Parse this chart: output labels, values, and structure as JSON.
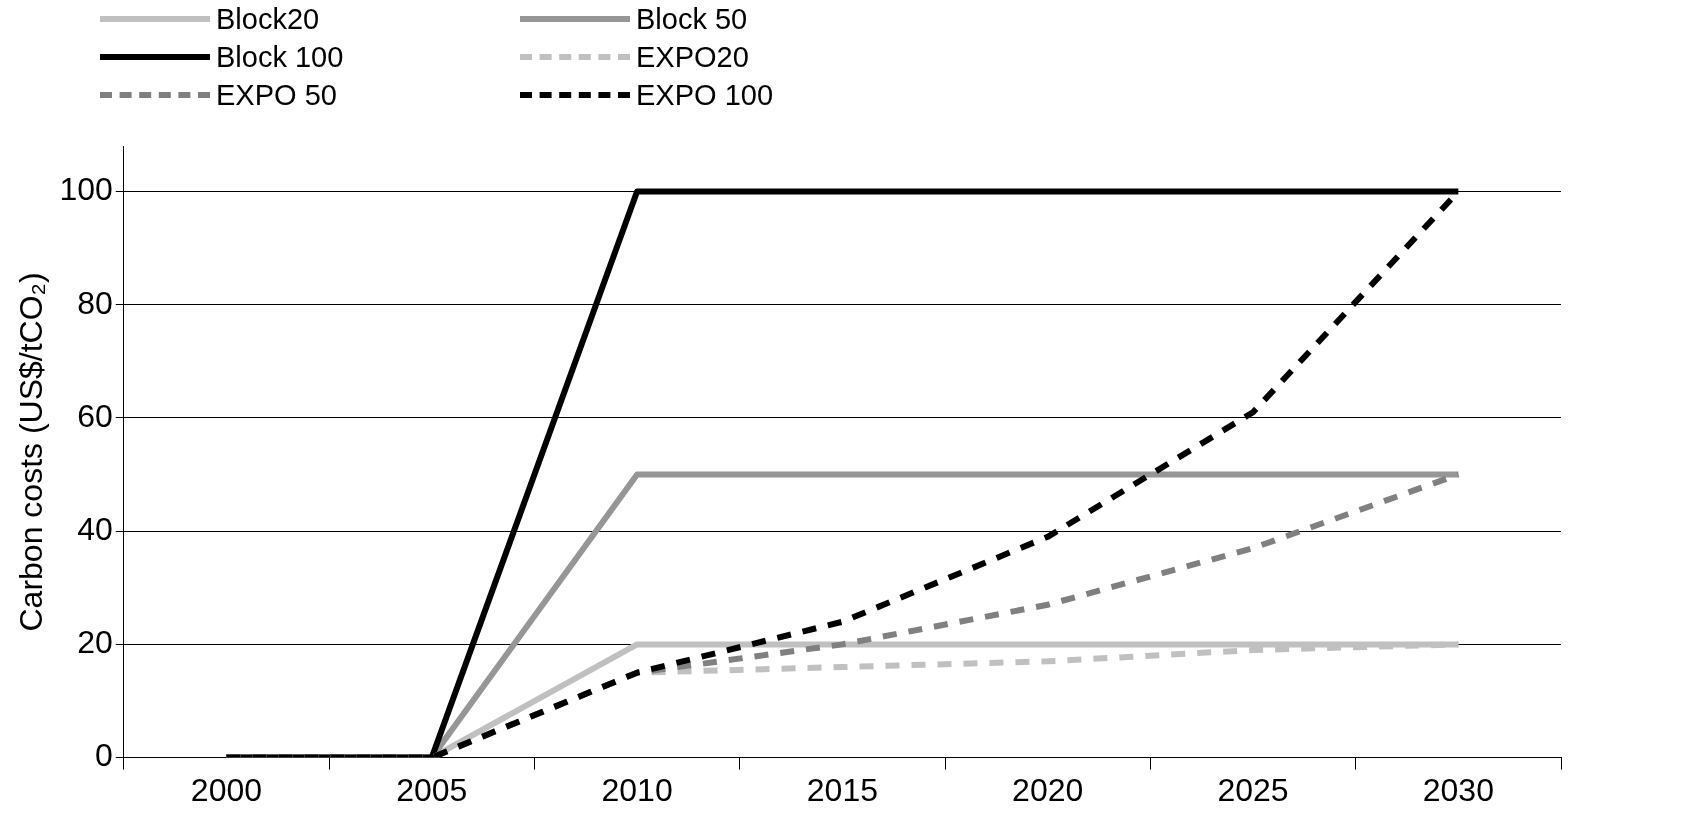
{
  "chart_data": {
    "type": "line",
    "ylabel": "Carbon costs (US$/tCO₂)",
    "categories": [
      "2000",
      "2005",
      "2010",
      "2015",
      "2020",
      "2025",
      "2030"
    ],
    "ylim": [
      0,
      108
    ],
    "yticks": [
      0,
      20,
      40,
      60,
      80,
      100
    ],
    "grid": "y",
    "legend": "top left",
    "marker": "none",
    "series": [
      {
        "name": "Block20",
        "color": "#c0c0c0",
        "line_style": "solid",
        "values": [
          0,
          0,
          20,
          20,
          20,
          20,
          20
        ]
      },
      {
        "name": "Block 50",
        "color": "#969696",
        "line_style": "solid",
        "values": [
          0,
          0,
          50,
          50,
          50,
          50,
          50
        ]
      },
      {
        "name": "Block 100",
        "color": "#000000",
        "line_style": "solid",
        "values": [
          0,
          0,
          100,
          100,
          100,
          100,
          100
        ]
      },
      {
        "name": "EXPO20",
        "color": "#c0c0c0",
        "line_style": "dashed",
        "values": [
          0,
          0,
          15,
          16,
          17,
          19,
          20
        ]
      },
      {
        "name": "EXPO 50",
        "color": "#808080",
        "line_style": "dashed",
        "values": [
          0,
          0,
          15,
          20,
          27,
          37,
          50
        ]
      },
      {
        "name": "EXPO 100",
        "color": "#000000",
        "line_style": "dashed",
        "values": [
          0,
          0,
          15,
          24,
          39,
          61,
          100
        ]
      }
    ]
  }
}
